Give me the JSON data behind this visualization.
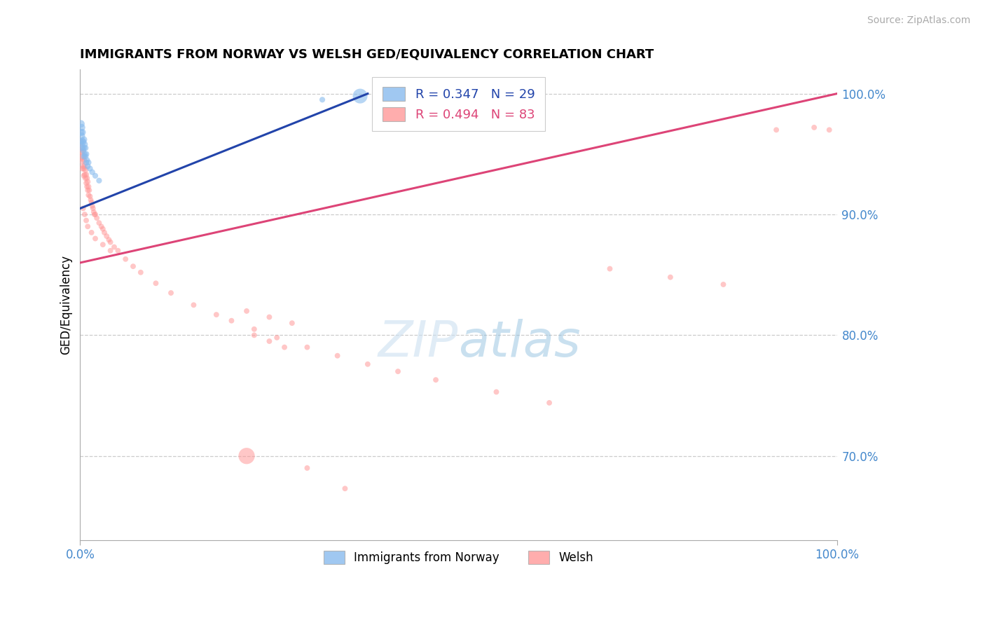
{
  "title": "IMMIGRANTS FROM NORWAY VS WELSH GED/EQUIVALENCY CORRELATION CHART",
  "source": "Source: ZipAtlas.com",
  "ylabel": "GED/Equivalency",
  "legend_r1": "R = 0.347   N = 29",
  "legend_r2": "R = 0.494   N = 83",
  "legend_label1": "Immigrants from Norway",
  "legend_label2": "Welsh",
  "blue_color": "#88BBEE",
  "pink_color": "#FF9999",
  "blue_line_color": "#2244AA",
  "pink_line_color": "#DD4477",
  "legend_r1_color": "#2244AA",
  "legend_r2_color": "#DD4477",
  "axis_color": "#4488CC",
  "xlim": [
    0.0,
    1.0
  ],
  "ylim": [
    0.63,
    1.02
  ],
  "yticks": [
    0.7,
    0.8,
    0.9,
    1.0
  ],
  "ytick_labels": [
    "70.0%",
    "80.0%",
    "90.0%",
    "100.0%"
  ],
  "blue_line_x0": 0.0,
  "blue_line_y0": 0.905,
  "blue_line_x1": 0.38,
  "blue_line_y1": 1.0,
  "pink_line_x0": 0.0,
  "pink_line_x1": 1.0,
  "pink_line_y0": 0.86,
  "pink_line_y1": 1.0,
  "blue_x": [
    0.001,
    0.001,
    0.001,
    0.002,
    0.002,
    0.002,
    0.003,
    0.003,
    0.003,
    0.004,
    0.004,
    0.005,
    0.005,
    0.005,
    0.006,
    0.006,
    0.007,
    0.007,
    0.008,
    0.008,
    0.009,
    0.01,
    0.011,
    0.013,
    0.016,
    0.02,
    0.025,
    0.32,
    0.37
  ],
  "blue_y": [
    0.975,
    0.968,
    0.96,
    0.972,
    0.965,
    0.958,
    0.968,
    0.961,
    0.955,
    0.96,
    0.953,
    0.962,
    0.955,
    0.948,
    0.958,
    0.95,
    0.955,
    0.948,
    0.95,
    0.943,
    0.945,
    0.94,
    0.943,
    0.938,
    0.935,
    0.932,
    0.928,
    0.995,
    0.998
  ],
  "blue_sizes": [
    60,
    55,
    50,
    55,
    50,
    45,
    50,
    45,
    42,
    45,
    42,
    45,
    42,
    40,
    42,
    40,
    40,
    40,
    40,
    38,
    38,
    38,
    38,
    36,
    36,
    35,
    35,
    35,
    230
  ],
  "pink_x": [
    0.001,
    0.001,
    0.002,
    0.002,
    0.003,
    0.003,
    0.003,
    0.004,
    0.004,
    0.005,
    0.005,
    0.005,
    0.006,
    0.006,
    0.007,
    0.007,
    0.008,
    0.008,
    0.009,
    0.009,
    0.01,
    0.01,
    0.011,
    0.011,
    0.012,
    0.013,
    0.014,
    0.015,
    0.016,
    0.017,
    0.018,
    0.019,
    0.02,
    0.022,
    0.025,
    0.028,
    0.03,
    0.032,
    0.035,
    0.038,
    0.04,
    0.045,
    0.05,
    0.06,
    0.07,
    0.08,
    0.1,
    0.12,
    0.15,
    0.18,
    0.2,
    0.23,
    0.26,
    0.3,
    0.34,
    0.38,
    0.42,
    0.47,
    0.55,
    0.62,
    0.7,
    0.78,
    0.85,
    0.92,
    0.97,
    0.99,
    0.004,
    0.006,
    0.008,
    0.01,
    0.015,
    0.02,
    0.03,
    0.04,
    0.22,
    0.25,
    0.28,
    0.23,
    0.25,
    0.27,
    0.22,
    0.3,
    0.35
  ],
  "pink_y": [
    0.96,
    0.952,
    0.955,
    0.947,
    0.952,
    0.944,
    0.938,
    0.948,
    0.94,
    0.945,
    0.938,
    0.932,
    0.94,
    0.933,
    0.937,
    0.93,
    0.933,
    0.926,
    0.93,
    0.923,
    0.927,
    0.92,
    0.923,
    0.916,
    0.92,
    0.915,
    0.912,
    0.91,
    0.907,
    0.905,
    0.902,
    0.9,
    0.9,
    0.897,
    0.893,
    0.89,
    0.888,
    0.885,
    0.882,
    0.879,
    0.877,
    0.873,
    0.87,
    0.863,
    0.857,
    0.852,
    0.843,
    0.835,
    0.825,
    0.817,
    0.812,
    0.805,
    0.798,
    0.79,
    0.783,
    0.776,
    0.77,
    0.763,
    0.753,
    0.744,
    0.855,
    0.848,
    0.842,
    0.97,
    0.972,
    0.97,
    0.905,
    0.9,
    0.895,
    0.89,
    0.885,
    0.88,
    0.875,
    0.87,
    0.82,
    0.815,
    0.81,
    0.8,
    0.795,
    0.79,
    0.7,
    0.69,
    0.673
  ],
  "pink_sizes": [
    45,
    42,
    45,
    42,
    45,
    42,
    38,
    42,
    38,
    42,
    38,
    35,
    38,
    35,
    38,
    35,
    35,
    32,
    35,
    32,
    35,
    32,
    35,
    32,
    32,
    32,
    32,
    32,
    32,
    32,
    32,
    32,
    32,
    32,
    32,
    32,
    32,
    32,
    32,
    32,
    32,
    32,
    32,
    32,
    32,
    32,
    32,
    32,
    32,
    32,
    32,
    32,
    32,
    32,
    32,
    32,
    32,
    32,
    32,
    32,
    32,
    32,
    32,
    32,
    32,
    32,
    32,
    32,
    32,
    32,
    32,
    32,
    32,
    32,
    32,
    32,
    32,
    32,
    32,
    32,
    280,
    32,
    32
  ]
}
